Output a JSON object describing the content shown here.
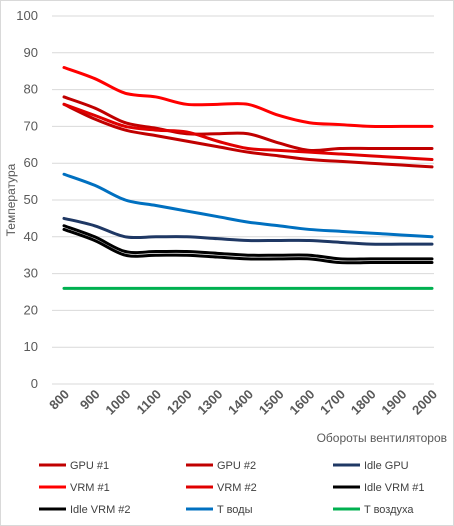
{
  "chart_data": {
    "type": "line",
    "title": "",
    "xlabel": "Обороты вентиляторов",
    "ylabel": "Температура",
    "ylim": [
      0,
      100
    ],
    "yticks": [
      0,
      10,
      20,
      30,
      40,
      50,
      60,
      70,
      80,
      90,
      100
    ],
    "grid": true,
    "legend_position": "bottom",
    "x": [
      "800",
      "900",
      "1000",
      "1100",
      "1200",
      "1300",
      "1400",
      "1500",
      "1600",
      "1700",
      "1800",
      "1900",
      "2000"
    ],
    "series": [
      {
        "name": "GPU #1",
        "color": "#c00000",
        "values": [
          78,
          75,
          71,
          69.5,
          68,
          68,
          68,
          65.5,
          63.5,
          64,
          64,
          64,
          64
        ]
      },
      {
        "name": "GPU #2",
        "color": "#c00000",
        "values": [
          76,
          72,
          69,
          67.5,
          66,
          64.5,
          63,
          62,
          61,
          60.5,
          60,
          59.5,
          59
        ]
      },
      {
        "name": "Idle GPU",
        "color": "#1f3864",
        "values": [
          45,
          43,
          40,
          40,
          40,
          39.5,
          39,
          39,
          39,
          38.5,
          38,
          38,
          38
        ]
      },
      {
        "name": "VRM #1",
        "color": "#ff0000",
        "values": [
          86,
          83,
          79,
          78,
          76,
          76,
          76,
          73,
          71,
          70.5,
          70,
          70,
          70
        ]
      },
      {
        "name": "VRM #2",
        "color": "#e00000",
        "values": [
          76,
          73,
          70,
          69,
          68.5,
          66,
          64,
          63.5,
          63,
          62.5,
          62,
          61.5,
          61
        ]
      },
      {
        "name": "Idle VRM #1",
        "color": "#000000",
        "values": [
          43,
          40,
          36,
          36,
          36,
          35.5,
          35,
          35,
          35,
          34,
          34,
          34,
          34
        ]
      },
      {
        "name": "Idle VRM #2",
        "color": "#000000",
        "values": [
          42,
          39,
          35,
          35,
          35,
          34.5,
          34,
          34,
          34,
          33,
          33,
          33,
          33
        ]
      },
      {
        "name": "T воды",
        "color": "#0070c0",
        "values": [
          57,
          54,
          50,
          48.5,
          47,
          45.5,
          44,
          43,
          42,
          41.5,
          41,
          40.5,
          40
        ]
      },
      {
        "name": "T воздуха",
        "color": "#00b050",
        "values": [
          26,
          26,
          26,
          26,
          26,
          26,
          26,
          26,
          26,
          26,
          26,
          26,
          26
        ]
      }
    ]
  }
}
